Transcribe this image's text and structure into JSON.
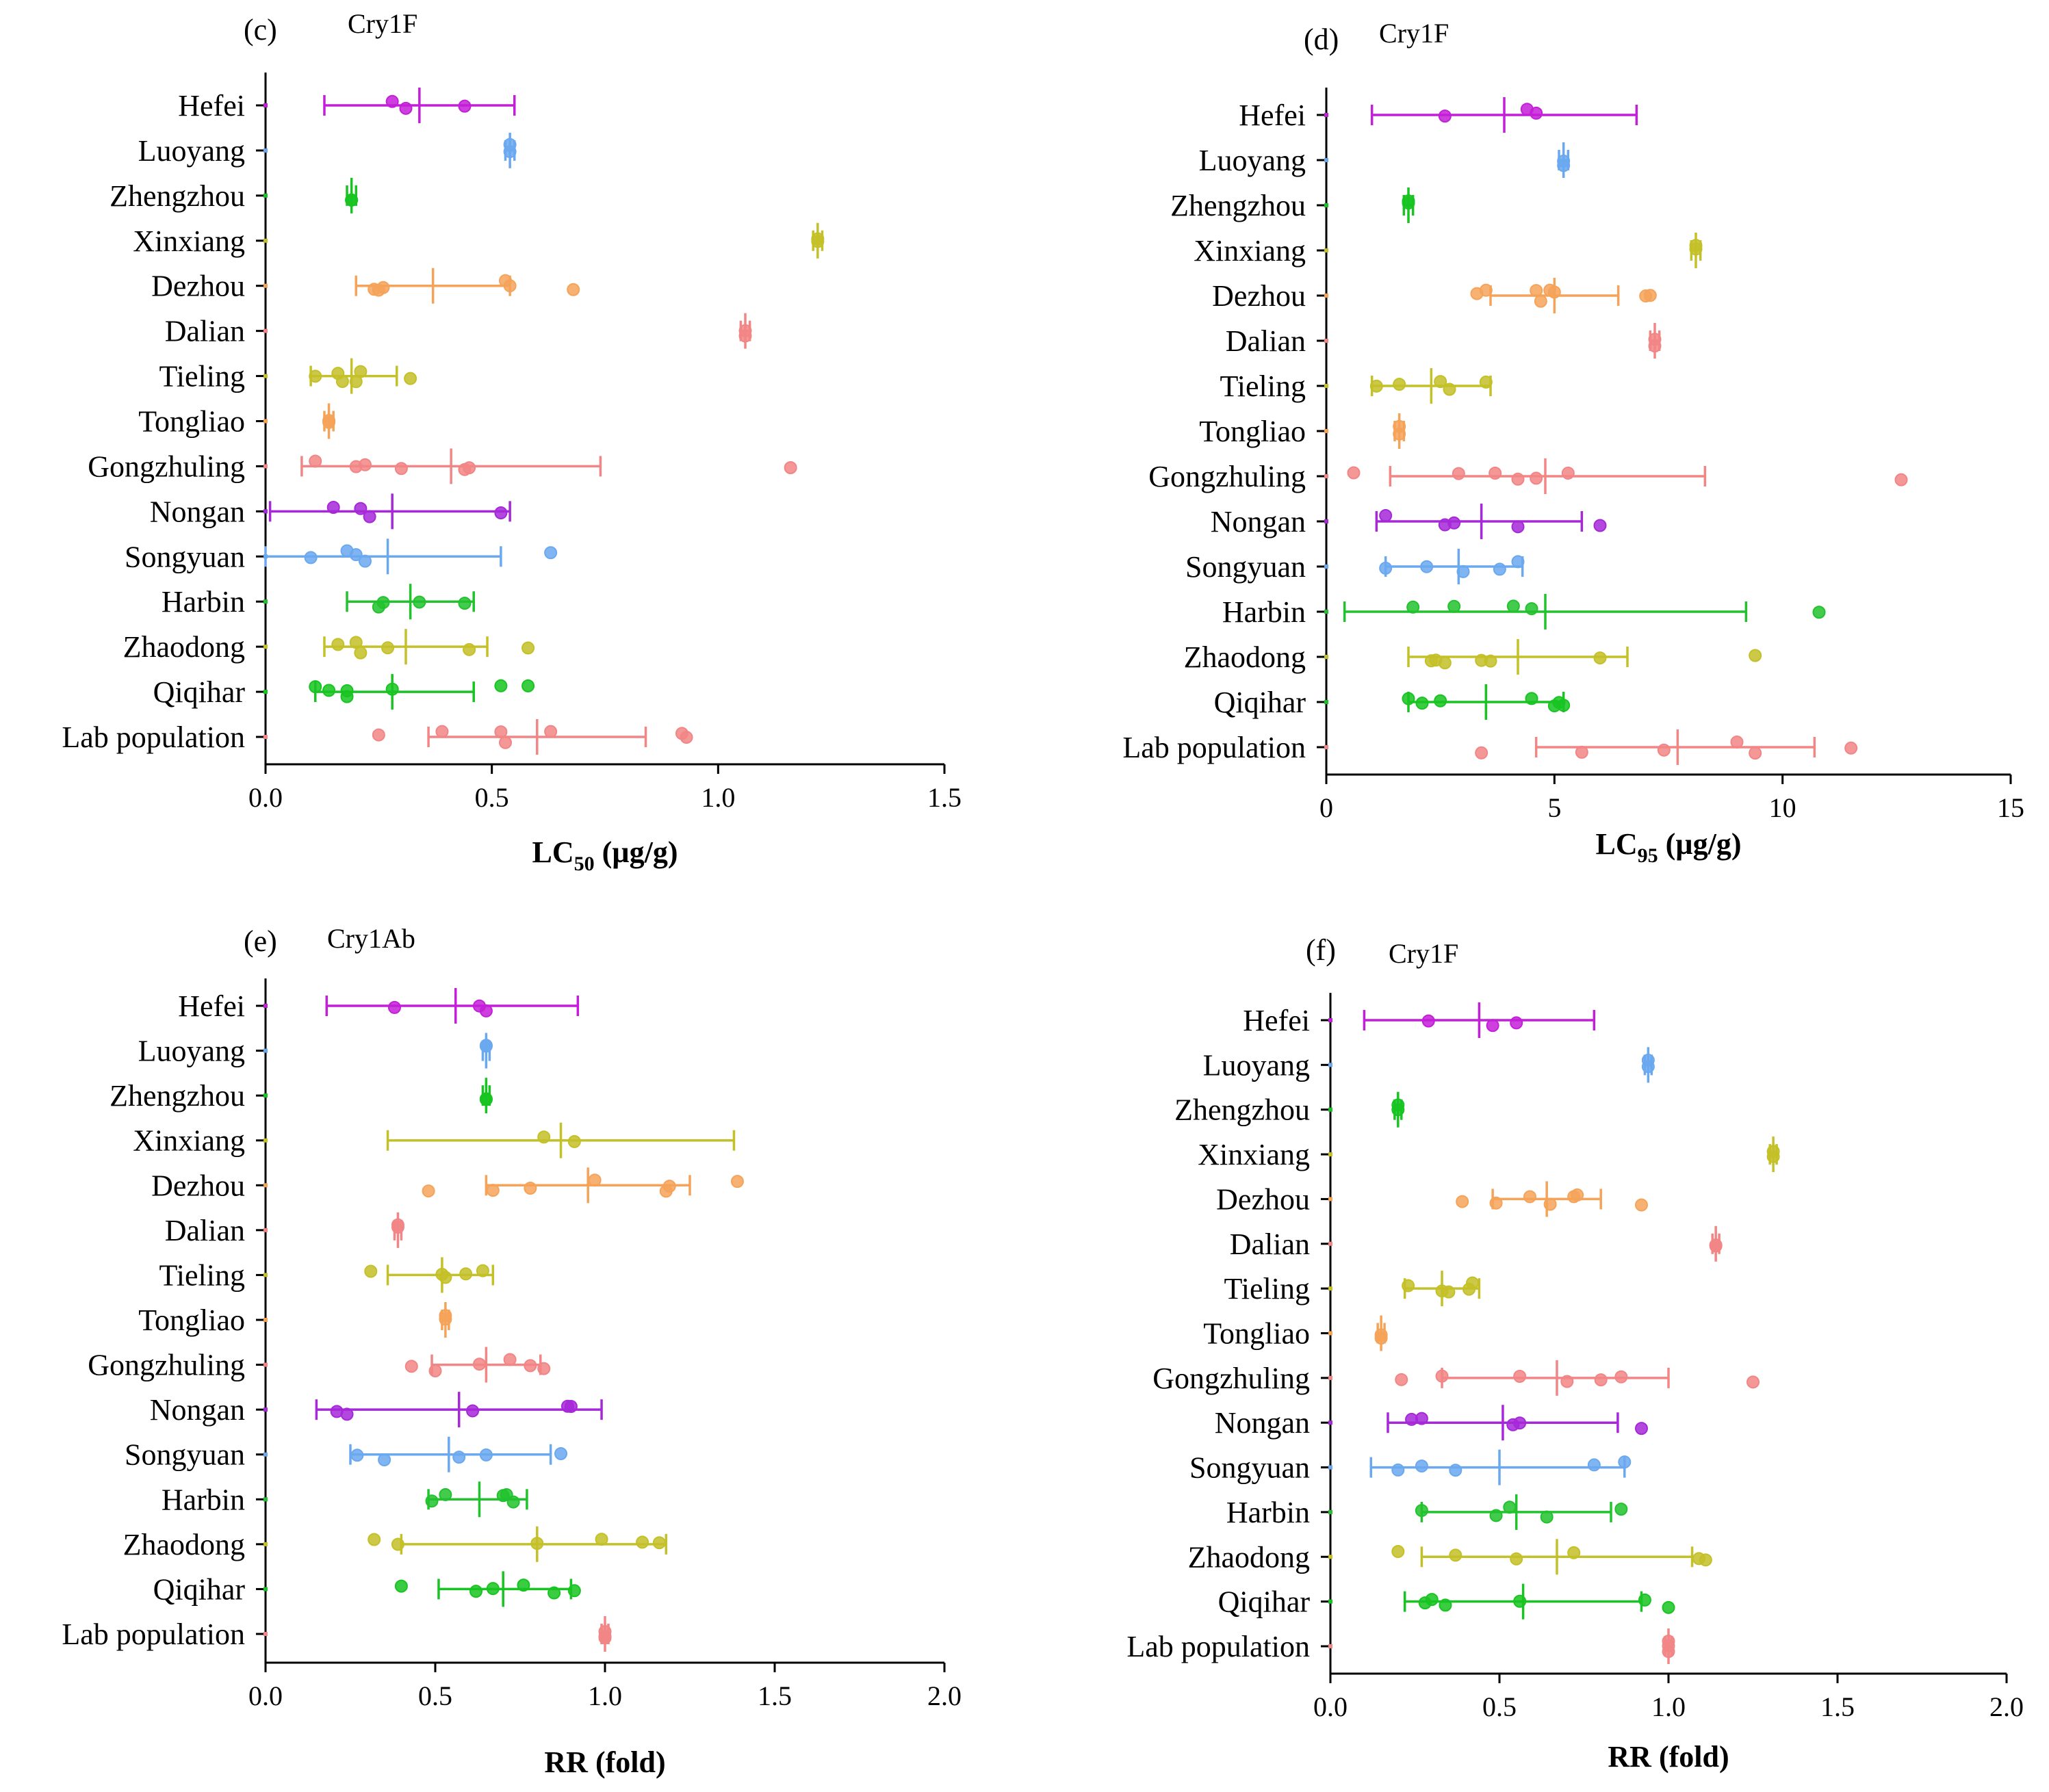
{
  "chart_data": [
    {
      "type": "scatter",
      "panel": "(c)",
      "title": "Cry1F",
      "xlabel": "LC",
      "xlabel_sub": "50",
      "xlabel_unit": " (µg/g)",
      "xlim": [
        0,
        1.5
      ],
      "xticks": [
        0,
        0.5,
        1.0,
        1.5
      ],
      "xtick_labels": [
        "0.0",
        "0.5",
        "1.0",
        "1.5"
      ],
      "categories": [
        "Hefei",
        "Luoyang",
        "Zhengzhou",
        "Xinxiang",
        "Dezhou",
        "Dalian",
        "Tieling",
        "Tongliao ",
        "Gongzhuling",
        "Nongan",
        "Songyuan",
        "Harbin",
        "Zhaodong",
        "Qiqihar",
        "Lab population"
      ],
      "series": [
        {
          "values": [
            0.28,
            0.31,
            0.44
          ],
          "mean": 0.34,
          "lo": 0.13,
          "hi": 0.55
        },
        {
          "values": [
            0.54,
            0.54
          ],
          "mean": 0.54,
          "lo": 0.53,
          "hi": 0.55
        },
        {
          "values": [
            0.19,
            0.19
          ],
          "mean": 0.19,
          "lo": 0.18,
          "hi": 0.2
        },
        {
          "values": [
            1.22,
            1.22
          ],
          "mean": 1.22,
          "lo": 1.21,
          "hi": 1.23
        },
        {
          "values": [
            0.24,
            0.25,
            0.26,
            0.53,
            0.54,
            0.68
          ],
          "mean": 0.37,
          "lo": 0.2,
          "hi": 0.54
        },
        {
          "values": [
            1.06,
            1.06
          ],
          "mean": 1.06,
          "lo": 1.05,
          "hi": 1.07
        },
        {
          "values": [
            0.11,
            0.16,
            0.17,
            0.2,
            0.21,
            0.32
          ],
          "mean": 0.19,
          "lo": 0.1,
          "hi": 0.29
        },
        {
          "values": [
            0.14,
            0.14
          ],
          "mean": 0.14,
          "lo": 0.13,
          "hi": 0.15
        },
        {
          "values": [
            0.11,
            0.2,
            0.22,
            0.3,
            0.44,
            0.45,
            1.16
          ],
          "mean": 0.41,
          "lo": 0.08,
          "hi": 0.74
        },
        {
          "values": [
            0.15,
            0.21,
            0.23,
            0.52
          ],
          "mean": 0.28,
          "lo": 0.01,
          "hi": 0.54
        },
        {
          "values": [
            0.1,
            0.18,
            0.2,
            0.22,
            0.63
          ],
          "mean": 0.27,
          "lo": 0.0,
          "hi": 0.52
        },
        {
          "values": [
            0.25,
            0.26,
            0.34,
            0.44
          ],
          "mean": 0.32,
          "lo": 0.18,
          "hi": 0.46
        },
        {
          "values": [
            0.16,
            0.2,
            0.21,
            0.27,
            0.45,
            0.58
          ],
          "mean": 0.31,
          "lo": 0.13,
          "hi": 0.49
        },
        {
          "values": [
            0.11,
            0.14,
            0.18,
            0.18,
            0.28,
            0.52,
            0.58
          ],
          "mean": 0.28,
          "lo": 0.11,
          "hi": 0.46
        },
        {
          "values": [
            0.25,
            0.39,
            0.52,
            0.53,
            0.63,
            0.92,
            0.93
          ],
          "mean": 0.6,
          "lo": 0.36,
          "hi": 0.84
        }
      ]
    },
    {
      "type": "scatter",
      "panel": "(d)",
      "title": "Cry1F",
      "xlabel": "LC",
      "xlabel_sub": "95",
      "xlabel_unit": " (µg/g)",
      "xlim": [
        0,
        15
      ],
      "xticks": [
        0,
        5,
        10,
        15
      ],
      "xtick_labels": [
        "0",
        "5",
        "10",
        "15"
      ],
      "categories": [
        "Hefei",
        "Luoyang",
        "Zhengzhou",
        "Xinxiang",
        "Dezhou",
        "Dalian",
        "Tieling",
        "Tongliao ",
        "Gongzhuling",
        "Nongan",
        "Songyuan",
        "Harbin",
        "Zhaodong",
        "Qiqihar",
        "Lab population"
      ],
      "series": [
        {
          "values": [
            2.6,
            4.4,
            4.6
          ],
          "mean": 3.9,
          "lo": 1.0,
          "hi": 6.8
        },
        {
          "values": [
            5.2,
            5.2
          ],
          "mean": 5.2,
          "lo": 5.1,
          "hi": 5.3
        },
        {
          "values": [
            1.8,
            1.8
          ],
          "mean": 1.8,
          "lo": 1.7,
          "hi": 1.9
        },
        {
          "values": [
            8.1,
            8.1
          ],
          "mean": 8.1,
          "lo": 8.0,
          "hi": 8.2
        },
        {
          "values": [
            3.3,
            3.5,
            4.6,
            4.7,
            4.9,
            5.0,
            7.0,
            7.1
          ],
          "mean": 5.0,
          "lo": 3.6,
          "hi": 6.4
        },
        {
          "values": [
            7.2,
            7.2
          ],
          "mean": 7.2,
          "lo": 7.1,
          "hi": 7.3
        },
        {
          "values": [
            1.1,
            1.6,
            2.5,
            2.7,
            3.5
          ],
          "mean": 2.3,
          "lo": 1.0,
          "hi": 3.6
        },
        {
          "values": [
            1.6,
            1.6
          ],
          "mean": 1.6,
          "lo": 1.5,
          "hi": 1.7
        },
        {
          "values": [
            0.6,
            2.9,
            3.7,
            4.2,
            4.6,
            5.3,
            12.6
          ],
          "mean": 4.8,
          "lo": 1.4,
          "hi": 8.3
        },
        {
          "values": [
            1.3,
            2.6,
            2.8,
            4.2,
            6.0
          ],
          "mean": 3.4,
          "lo": 1.1,
          "hi": 5.6
        },
        {
          "values": [
            1.3,
            2.2,
            3.0,
            3.8,
            4.2
          ],
          "mean": 2.9,
          "lo": 1.3,
          "hi": 4.3
        },
        {
          "values": [
            1.9,
            2.8,
            4.1,
            4.5,
            10.8
          ],
          "mean": 4.8,
          "lo": 0.4,
          "hi": 9.2
        },
        {
          "values": [
            2.3,
            2.4,
            2.6,
            3.4,
            3.6,
            6.0,
            9.4
          ],
          "mean": 4.2,
          "lo": 1.8,
          "hi": 6.6
        },
        {
          "values": [
            1.8,
            2.1,
            2.5,
            4.5,
            5.0,
            5.1,
            5.2
          ],
          "mean": 3.5,
          "lo": 1.8,
          "hi": 5.2
        },
        {
          "values": [
            3.4,
            5.6,
            7.4,
            9.0,
            9.4,
            11.5
          ],
          "mean": 7.7,
          "lo": 4.6,
          "hi": 10.7
        }
      ]
    },
    {
      "type": "scatter",
      "panel": "(e)",
      "title": "Cry1Ab",
      "xlabel": "RR (fold)",
      "xlim": [
        0,
        2.0
      ],
      "xticks": [
        0,
        0.5,
        1.0,
        1.5,
        2.0
      ],
      "xtick_labels": [
        "0.0",
        "0.5",
        "1.0",
        "1.5",
        "2.0"
      ],
      "categories": [
        "Hefei",
        "Luoyang",
        "Zhengzhou",
        "Xinxiang",
        "Dezhou",
        "Dalian",
        "Tieling",
        "Tongliao ",
        "Gongzhuling",
        "Nongan",
        "Songyuan",
        "Harbin",
        "Zhaodong",
        "Qiqihar",
        "Lab population"
      ],
      "series": [
        {
          "values": [
            0.38,
            0.63,
            0.65
          ],
          "mean": 0.56,
          "lo": 0.18,
          "hi": 0.92
        },
        {
          "values": [
            0.65,
            0.65
          ],
          "mean": 0.65,
          "lo": 0.64,
          "hi": 0.66
        },
        {
          "values": [
            0.65,
            0.65
          ],
          "mean": 0.65,
          "lo": 0.64,
          "hi": 0.66
        },
        {
          "values": [
            0.82,
            0.91
          ],
          "mean": 0.87,
          "lo": 0.36,
          "hi": 1.38
        },
        {
          "values": [
            0.48,
            0.67,
            0.78,
            0.97,
            1.18,
            1.19,
            1.39
          ],
          "mean": 0.95,
          "lo": 0.65,
          "hi": 1.25
        },
        {
          "values": [
            0.39,
            0.39
          ],
          "mean": 0.39,
          "lo": 0.38,
          "hi": 0.4
        },
        {
          "values": [
            0.31,
            0.52,
            0.53,
            0.59,
            0.64
          ],
          "mean": 0.52,
          "lo": 0.36,
          "hi": 0.67
        },
        {
          "values": [
            0.53,
            0.53
          ],
          "mean": 0.53,
          "lo": 0.52,
          "hi": 0.54
        },
        {
          "values": [
            0.43,
            0.5,
            0.63,
            0.72,
            0.78,
            0.82
          ],
          "mean": 0.65,
          "lo": 0.49,
          "hi": 0.81
        },
        {
          "values": [
            0.21,
            0.24,
            0.61,
            0.89,
            0.9
          ],
          "mean": 0.57,
          "lo": 0.15,
          "hi": 0.99
        },
        {
          "values": [
            0.27,
            0.35,
            0.57,
            0.65,
            0.87
          ],
          "mean": 0.54,
          "lo": 0.25,
          "hi": 0.84
        },
        {
          "values": [
            0.49,
            0.53,
            0.7,
            0.71,
            0.73
          ],
          "mean": 0.63,
          "lo": 0.48,
          "hi": 0.77
        },
        {
          "values": [
            0.32,
            0.39,
            0.8,
            0.99,
            1.11,
            1.16
          ],
          "mean": 0.8,
          "lo": 0.4,
          "hi": 1.18
        },
        {
          "values": [
            0.4,
            0.62,
            0.67,
            0.76,
            0.85,
            0.91
          ],
          "mean": 0.7,
          "lo": 0.51,
          "hi": 0.9
        },
        {
          "values": [
            1.0,
            1.0,
            1.0
          ],
          "mean": 1.0,
          "lo": 0.99,
          "hi": 1.01
        }
      ]
    },
    {
      "type": "scatter",
      "panel": "(f)",
      "title": "Cry1F",
      "xlabel": "RR (fold)",
      "xlim": [
        0,
        2.0
      ],
      "xticks": [
        0,
        0.5,
        1.0,
        1.5,
        2.0
      ],
      "xtick_labels": [
        "0.0",
        "0.5",
        "1.0",
        "1.5",
        "2.0"
      ],
      "categories": [
        "Hefei",
        "Luoyang",
        "Zhengzhou",
        "Xinxiang",
        "Dezhou",
        "Dalian",
        "Tieling",
        "Tongliao ",
        "Gongzhuling",
        "Nongan",
        "Songyuan",
        "Harbin",
        "Zhaodong",
        "Qiqihar",
        "Lab population"
      ],
      "series": [
        {
          "values": [
            0.29,
            0.48,
            0.55
          ],
          "mean": 0.44,
          "lo": 0.1,
          "hi": 0.78
        },
        {
          "values": [
            0.94,
            0.94
          ],
          "mean": 0.94,
          "lo": 0.93,
          "hi": 0.95
        },
        {
          "values": [
            0.2,
            0.2
          ],
          "mean": 0.2,
          "lo": 0.19,
          "hi": 0.21
        },
        {
          "values": [
            1.31,
            1.31
          ],
          "mean": 1.31,
          "lo": 1.3,
          "hi": 1.32
        },
        {
          "values": [
            0.39,
            0.49,
            0.59,
            0.65,
            0.72,
            0.73,
            0.92
          ],
          "mean": 0.64,
          "lo": 0.48,
          "hi": 0.8
        },
        {
          "values": [
            1.14,
            1.14
          ],
          "mean": 1.14,
          "lo": 1.13,
          "hi": 1.15
        },
        {
          "values": [
            0.23,
            0.33,
            0.35,
            0.41,
            0.42
          ],
          "mean": 0.33,
          "lo": 0.22,
          "hi": 0.44
        },
        {
          "values": [
            0.15,
            0.15
          ],
          "mean": 0.15,
          "lo": 0.14,
          "hi": 0.16
        },
        {
          "values": [
            0.21,
            0.33,
            0.56,
            0.7,
            0.8,
            0.86,
            1.25
          ],
          "mean": 0.67,
          "lo": 0.33,
          "hi": 1.0
        },
        {
          "values": [
            0.24,
            0.27,
            0.54,
            0.56,
            0.92
          ],
          "mean": 0.51,
          "lo": 0.17,
          "hi": 0.85
        },
        {
          "values": [
            0.2,
            0.27,
            0.37,
            0.78,
            0.87
          ],
          "mean": 0.5,
          "lo": 0.12,
          "hi": 0.87
        },
        {
          "values": [
            0.27,
            0.49,
            0.53,
            0.64,
            0.86
          ],
          "mean": 0.55,
          "lo": 0.27,
          "hi": 0.83
        },
        {
          "values": [
            0.2,
            0.37,
            0.55,
            0.72,
            1.09,
            1.11
          ],
          "mean": 0.67,
          "lo": 0.27,
          "hi": 1.07
        },
        {
          "values": [
            0.28,
            0.3,
            0.34,
            0.56,
            0.93,
            1.0
          ],
          "mean": 0.57,
          "lo": 0.22,
          "hi": 0.92
        },
        {
          "values": [
            1.0,
            1.0,
            1.0
          ],
          "mean": 1.0,
          "lo": 0.99,
          "hi": 1.01
        }
      ]
    }
  ],
  "colors": [
    "#c41fd8",
    "#6aa8f0",
    "#18c421",
    "#c4c028",
    "#f6a35a",
    "#f28585",
    "#c4c028",
    "#f6a35a",
    "#f28585",
    "#a628d8",
    "#6aa8f0",
    "#22c22e",
    "#c4c028",
    "#18c421",
    "#f28585"
  ]
}
